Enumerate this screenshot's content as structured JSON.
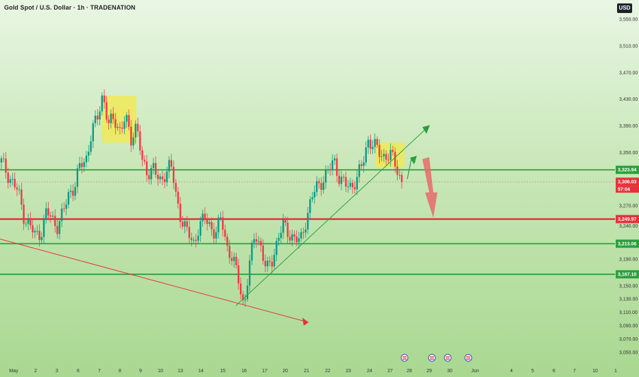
{
  "chart_data": {
    "type": "candlestick",
    "title": "Gold Spot / U.S. Dollar · 1h · TRADENATION",
    "currency": "USD",
    "y_ticks": [
      "3,550.00",
      "3,510.00",
      "3,470.00",
      "3,430.00",
      "3,390.00",
      "3,350.00",
      "3,270.00",
      "3,240.00",
      "3,190.00",
      "3,150.00",
      "3,130.00",
      "3,110.00",
      "3,090.00",
      "3,070.00",
      "3,050.00"
    ],
    "ylim": [
      3040,
      3570
    ],
    "x_ticks": [
      "May",
      "2",
      "3",
      "6",
      "7",
      "8",
      "9",
      "10",
      "13",
      "14",
      "15",
      "16",
      "17",
      "20",
      "21",
      "22",
      "23",
      "24",
      "27",
      "28",
      "29",
      "30",
      "Jun",
      "4",
      "5",
      "6",
      "7",
      "10",
      "1"
    ],
    "price_path": [
      3335,
      3320,
      3305,
      3290,
      3255,
      3240,
      3225,
      3230,
      3260,
      3250,
      3240,
      3260,
      3290,
      3300,
      3330,
      3340,
      3380,
      3400,
      3440,
      3390,
      3400,
      3385,
      3400,
      3370,
      3395,
      3330,
      3320,
      3330,
      3300,
      3320,
      3335,
      3280,
      3250,
      3230,
      3210,
      3240,
      3250,
      3240,
      3230,
      3250,
      3210,
      3190,
      3160,
      3120,
      3180,
      3230,
      3210,
      3170,
      3190,
      3220,
      3240,
      3230,
      3220,
      3215,
      3250,
      3280,
      3300,
      3310,
      3320,
      3340,
      3310,
      3300,
      3300,
      3310,
      3330,
      3370,
      3360,
      3350,
      3345,
      3345,
      3330,
      3306
    ],
    "levels": [
      {
        "label": "3,323.94",
        "value": 3323.94,
        "color": "#2e9e3e"
      },
      {
        "label": "3,306.03",
        "value": 3306.03,
        "color": "#e5323b",
        "sub": "57:04"
      },
      {
        "label": "3,249.97",
        "value": 3249.97,
        "color": "#e5323b"
      },
      {
        "label": "3,213.06",
        "value": 3213.06,
        "color": "#2e9e3e"
      },
      {
        "label": "3,167.10",
        "value": 3167.1,
        "color": "#2e9e3e"
      }
    ],
    "colors": {
      "up": "#089981",
      "down": "#f23645",
      "support": "#2e9e3e",
      "resistance": "#e5323b",
      "zone": "#f4e84a",
      "arrow_down": "#e86a6a"
    }
  }
}
